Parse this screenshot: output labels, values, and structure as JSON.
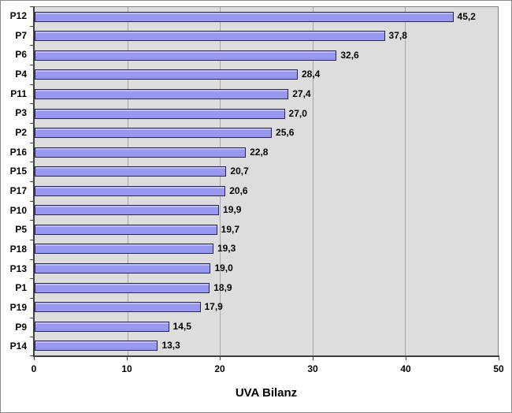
{
  "chart_data": {
    "type": "bar",
    "orientation": "horizontal",
    "title": "",
    "xlabel": "UVA Bilanz",
    "ylabel": "",
    "categories": [
      "P12",
      "P7",
      "P6",
      "P4",
      "P11",
      "P3",
      "P2",
      "P16",
      "P15",
      "P17",
      "P10",
      "P5",
      "P18",
      "P13",
      "P1",
      "P19",
      "P9",
      "P14"
    ],
    "values": [
      45.2,
      37.8,
      32.6,
      28.4,
      27.4,
      27.0,
      25.6,
      22.8,
      20.7,
      20.6,
      19.9,
      19.7,
      19.3,
      19.0,
      18.9,
      17.9,
      14.5,
      13.3
    ],
    "value_labels": [
      "45,2",
      "37,8",
      "32,6",
      "28,4",
      "27,4",
      "27,0",
      "25,6",
      "22,8",
      "20,7",
      "20,6",
      "19,9",
      "19,7",
      "19,3",
      "19,0",
      "18,9",
      "17,9",
      "14,5",
      "13,3"
    ],
    "xlim": [
      0,
      50
    ],
    "xticks": [
      0,
      10,
      20,
      30,
      40,
      50
    ],
    "xtick_labels": [
      "0",
      "10",
      "20",
      "30",
      "40",
      "50"
    ],
    "grid": true,
    "legend": "none",
    "colors": {
      "bar_fill": "#9898F0",
      "bar_border": "#26264D",
      "plot_bg": "#DDDDDD",
      "gridline": "#A6A6A6",
      "plot_border": "#7F7F7F",
      "axis_line": "#3F3F3F",
      "text": "#000000",
      "background": "#FFFFFF"
    }
  }
}
